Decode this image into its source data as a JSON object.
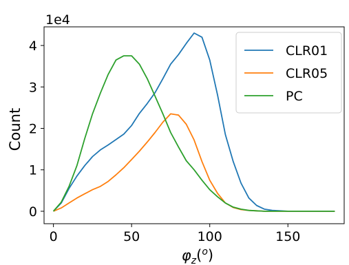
{
  "chart_data": {
    "type": "line",
    "title": "",
    "xlabel": "φz(o)",
    "ylabel": "Count",
    "y_offset_label": "1e4",
    "xlim": [
      -6,
      186
    ],
    "ylim": [
      -0.3,
      4.45
    ],
    "x_ticks": [
      0,
      50,
      100,
      150
    ],
    "x_tick_labels": [
      "0",
      "50",
      "100",
      "150"
    ],
    "y_ticks": [
      0,
      1,
      2,
      3,
      4
    ],
    "y_tick_labels": [
      "0",
      "1",
      "2",
      "3",
      "4"
    ],
    "grid": false,
    "legend_position": "top-right",
    "series": [
      {
        "name": "CLR01",
        "color": "#1f77b4",
        "x": [
          0,
          5,
          10,
          15,
          20,
          25,
          30,
          35,
          40,
          45,
          50,
          55,
          60,
          65,
          70,
          75,
          80,
          85,
          90,
          95,
          100,
          105,
          110,
          115,
          120,
          125,
          130,
          135,
          140,
          145,
          150,
          155,
          160,
          165,
          170,
          175,
          180
        ],
        "values": [
          0.0,
          0.2,
          0.55,
          0.85,
          1.1,
          1.32,
          1.48,
          1.6,
          1.73,
          1.86,
          2.07,
          2.36,
          2.6,
          2.86,
          3.2,
          3.55,
          3.78,
          4.05,
          4.3,
          4.2,
          3.65,
          2.8,
          1.85,
          1.2,
          0.68,
          0.32,
          0.14,
          0.05,
          0.02,
          0.01,
          0.0,
          0.0,
          0.0,
          0.0,
          0.0,
          0.0,
          0.0
        ]
      },
      {
        "name": "CLR05",
        "color": "#ff7f0e",
        "x": [
          0,
          5,
          10,
          15,
          20,
          25,
          30,
          35,
          40,
          45,
          50,
          55,
          60,
          65,
          70,
          75,
          80,
          85,
          90,
          95,
          100,
          105,
          110,
          115,
          120,
          125,
          130,
          135,
          140,
          145,
          150,
          155,
          160,
          165,
          170,
          175,
          180
        ],
        "values": [
          0.0,
          0.08,
          0.2,
          0.32,
          0.42,
          0.52,
          0.6,
          0.72,
          0.88,
          1.05,
          1.25,
          1.45,
          1.67,
          1.9,
          2.15,
          2.35,
          2.32,
          2.1,
          1.72,
          1.2,
          0.75,
          0.43,
          0.2,
          0.09,
          0.04,
          0.02,
          0.01,
          0.0,
          0.0,
          0.0,
          0.0,
          0.0,
          0.0,
          0.0,
          0.0,
          0.0,
          0.0
        ]
      },
      {
        "name": "PC",
        "color": "#2ca02c",
        "x": [
          0,
          5,
          10,
          15,
          20,
          25,
          30,
          35,
          40,
          45,
          50,
          55,
          60,
          65,
          70,
          75,
          80,
          85,
          90,
          95,
          100,
          105,
          110,
          115,
          120,
          125,
          130,
          135,
          140,
          145,
          150,
          155,
          160,
          165,
          170,
          175,
          180
        ],
        "values": [
          0.0,
          0.22,
          0.6,
          1.1,
          1.75,
          2.35,
          2.85,
          3.3,
          3.65,
          3.75,
          3.75,
          3.55,
          3.2,
          2.78,
          2.35,
          1.9,
          1.55,
          1.22,
          1.0,
          0.75,
          0.52,
          0.35,
          0.2,
          0.1,
          0.05,
          0.02,
          0.01,
          0.0,
          0.0,
          0.0,
          0.0,
          0.0,
          0.0,
          0.0,
          0.0,
          0.0,
          0.0
        ]
      }
    ]
  }
}
